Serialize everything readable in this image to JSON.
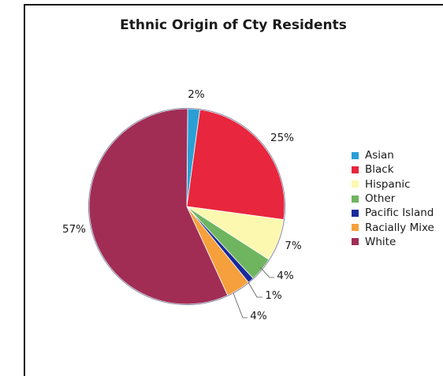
{
  "chart_data": {
    "type": "pie",
    "title": "Ethnic Origin of Cty Residents",
    "categories": [
      "Asian",
      "Black",
      "Hispanic",
      "Other",
      "Pacific Island",
      "Racially Mixe",
      "White"
    ],
    "values": [
      2,
      25,
      7,
      4,
      1,
      4,
      57
    ],
    "data_labels": [
      "2%",
      "25%",
      "7%",
      "4%",
      "1%",
      "4%",
      "57%"
    ],
    "colors": [
      "#2a9fd6",
      "#e8263d",
      "#fdf8b0",
      "#6fb560",
      "#1a2a9a",
      "#f5a03c",
      "#a12d55"
    ],
    "legend_position": "right"
  }
}
